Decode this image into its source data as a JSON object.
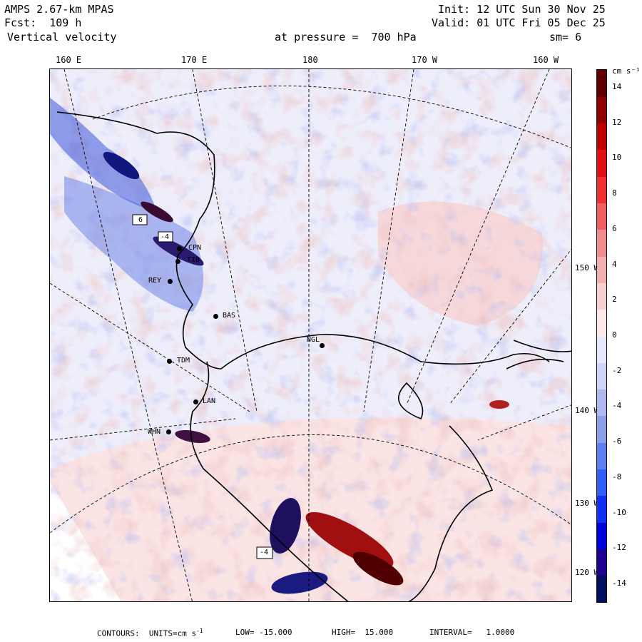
{
  "header": {
    "model": "AMPS 2.67-km MPAS",
    "forecast": "Fcst:  109 h",
    "field": "Vertical velocity",
    "level": "at pressure =  700 hPa",
    "init": "Init: 12 UTC Sun 30 Nov 25",
    "valid": "Valid: 01 UTC Fri 05 Dec 25",
    "smoothing": "sm= 6"
  },
  "map": {
    "longitude_labels": [
      "160 E",
      "170 E",
      "180",
      "170 W",
      "160 W"
    ],
    "latitude_labels": [
      "150 W",
      "140 W",
      "130 W",
      "120 W"
    ],
    "stations": [
      {
        "code": "CPN"
      },
      {
        "code": "TIB"
      },
      {
        "code": "REY"
      },
      {
        "code": "BAS"
      },
      {
        "code": "NGL"
      },
      {
        "code": "TDM"
      },
      {
        "code": "LAN"
      },
      {
        "code": "WHN"
      }
    ],
    "box_labels": [
      "6",
      "-4",
      "-4"
    ]
  },
  "colorbar": {
    "units": "cm s⁻¹",
    "tick_labels": [
      "14",
      "12",
      "10",
      "8",
      "6",
      "4",
      "2",
      "0",
      "-2",
      "-4",
      "-6",
      "-8",
      "-10",
      "-12",
      "-14"
    ],
    "colors": [
      "#001060",
      "#200090",
      "#0000d8",
      "#1030f8",
      "#3060f8",
      "#5c80f0",
      "#8aa0e8",
      "#b0b8f0",
      "#d0d4f8",
      "#e8e8fc",
      "#fce8e8",
      "#f8d0d0",
      "#f0b0b0",
      "#f08c8c",
      "#f06060",
      "#f03030",
      "#e01010",
      "#c00000",
      "#900000",
      "#600000"
    ]
  },
  "footer": {
    "contours": "CONTOURS:  UNITS=cm s",
    "units_sup": "-1",
    "low": "LOW= -15.000",
    "high": "HIGH=  15.000",
    "interval": "INTERVAL=   1.0000"
  }
}
